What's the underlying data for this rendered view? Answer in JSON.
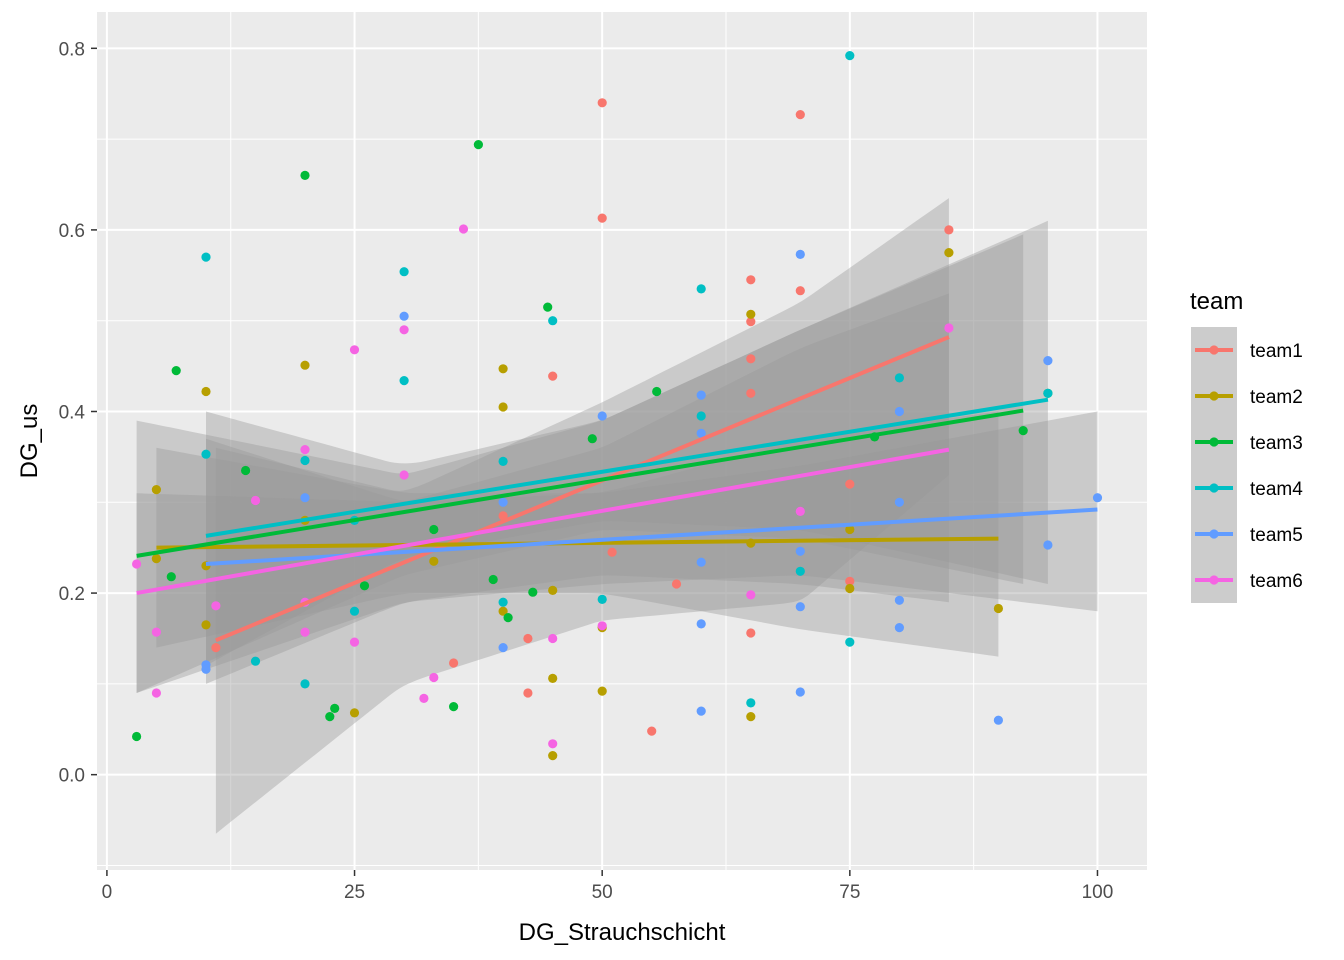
{
  "chart_data": {
    "type": "scatter",
    "title": "",
    "xlabel": "DG_Strauchschicht",
    "ylabel": "DG_us",
    "xlim": [
      -1,
      105
    ],
    "ylim": [
      -0.105,
      0.84
    ],
    "x_ticks": [
      0,
      25,
      50,
      75,
      100
    ],
    "y_ticks": [
      0.0,
      0.2,
      0.4,
      0.6,
      0.8
    ],
    "x_tick_labels": [
      "0",
      "25",
      "50",
      "75",
      "100"
    ],
    "y_tick_labels": [
      "0.0",
      "0.2",
      "0.4",
      "0.6",
      "0.8"
    ],
    "grid": true,
    "legend": {
      "title": "team",
      "position": "right"
    },
    "smoothing": "linear fit with confidence band",
    "series": [
      {
        "name": "team1",
        "color": "#F8766D",
        "points": [
          [
            50,
            0.74
          ],
          [
            50,
            0.613
          ],
          [
            70,
            0.727
          ],
          [
            85,
            0.6
          ],
          [
            65,
            0.545
          ],
          [
            70,
            0.533
          ],
          [
            65,
            0.499
          ],
          [
            65,
            0.458
          ],
          [
            45,
            0.439
          ],
          [
            65,
            0.42
          ],
          [
            75,
            0.32
          ],
          [
            75,
            0.213
          ],
          [
            57.5,
            0.21
          ],
          [
            51,
            0.245
          ],
          [
            42.5,
            0.15
          ],
          [
            35,
            0.123
          ],
          [
            42.5,
            0.09
          ],
          [
            55,
            0.048
          ],
          [
            65,
            0.156
          ],
          [
            11,
            0.14
          ],
          [
            40,
            0.285
          ]
        ],
        "fit": {
          "x": [
            11,
            85
          ],
          "y": [
            0.148,
            0.482
          ]
        },
        "band": {
          "x": [
            11,
            30,
            50,
            70,
            85
          ],
          "lo": [
            -0.065,
            0.1,
            0.17,
            0.19,
            0.33
          ],
          "hi": [
            0.36,
            0.31,
            0.41,
            0.52,
            0.635
          ]
        }
      },
      {
        "name": "team2",
        "color": "#B79F00",
        "points": [
          [
            5,
            0.314
          ],
          [
            5,
            0.238
          ],
          [
            10,
            0.422
          ],
          [
            10,
            0.165
          ],
          [
            10,
            0.23
          ],
          [
            20,
            0.451
          ],
          [
            20,
            0.28
          ],
          [
            25,
            0.068
          ],
          [
            33,
            0.235
          ],
          [
            40,
            0.447
          ],
          [
            40,
            0.405
          ],
          [
            40,
            0.18
          ],
          [
            45,
            0.203
          ],
          [
            45,
            0.106
          ],
          [
            45,
            0.021
          ],
          [
            50,
            0.162
          ],
          [
            50,
            0.092
          ],
          [
            65,
            0.507
          ],
          [
            65,
            0.064
          ],
          [
            65,
            0.255
          ],
          [
            75,
            0.205
          ],
          [
            85,
            0.575
          ],
          [
            90,
            0.183
          ],
          [
            75,
            0.27
          ]
        ],
        "fit": {
          "x": [
            5,
            90
          ],
          "y": [
            0.25,
            0.26
          ]
        },
        "band": {
          "x": [
            5,
            30,
            50,
            70,
            90
          ],
          "lo": [
            0.14,
            0.2,
            0.2,
            0.16,
            0.13
          ],
          "hi": [
            0.36,
            0.31,
            0.31,
            0.37,
            0.4
          ]
        }
      },
      {
        "name": "team3",
        "color": "#00BA38",
        "points": [
          [
            3,
            0.042
          ],
          [
            7,
            0.445
          ],
          [
            20,
            0.66
          ],
          [
            37.5,
            0.694
          ],
          [
            44.5,
            0.515
          ],
          [
            40.5,
            0.173
          ],
          [
            35,
            0.075
          ],
          [
            23,
            0.073
          ],
          [
            22.5,
            0.064
          ],
          [
            39,
            0.215
          ],
          [
            43,
            0.201
          ],
          [
            49,
            0.37
          ],
          [
            55.5,
            0.422
          ],
          [
            77.5,
            0.372
          ],
          [
            92.5,
            0.379
          ],
          [
            95,
            0.42
          ],
          [
            6.5,
            0.218
          ],
          [
            14,
            0.335
          ],
          [
            26,
            0.208
          ],
          [
            33,
            0.27
          ]
        ],
        "fit": {
          "x": [
            3,
            92.5
          ],
          "y": [
            0.241,
            0.401
          ]
        },
        "band": {
          "x": [
            3,
            30,
            50,
            70,
            92.5
          ],
          "lo": [
            0.09,
            0.22,
            0.27,
            0.26,
            0.21
          ],
          "hi": [
            0.39,
            0.33,
            0.39,
            0.49,
            0.595
          ]
        }
      },
      {
        "name": "team4",
        "color": "#00BFC4",
        "points": [
          [
            10,
            0.57
          ],
          [
            10,
            0.353
          ],
          [
            30,
            0.554
          ],
          [
            30,
            0.434
          ],
          [
            20,
            0.346
          ],
          [
            20,
            0.1
          ],
          [
            25,
            0.18
          ],
          [
            40,
            0.345
          ],
          [
            40,
            0.19
          ],
          [
            45,
            0.5
          ],
          [
            50,
            0.193
          ],
          [
            60,
            0.535
          ],
          [
            60,
            0.395
          ],
          [
            65,
            0.079
          ],
          [
            70,
            0.224
          ],
          [
            75,
            0.792
          ],
          [
            75,
            0.146
          ],
          [
            80,
            0.437
          ],
          [
            95,
            0.42
          ],
          [
            15,
            0.125
          ],
          [
            25,
            0.28
          ]
        ],
        "fit": {
          "x": [
            10,
            95
          ],
          "y": [
            0.263,
            0.413
          ]
        },
        "band": {
          "x": [
            10,
            30,
            50,
            70,
            95
          ],
          "lo": [
            0.12,
            0.24,
            0.28,
            0.27,
            0.21
          ],
          "hi": [
            0.4,
            0.34,
            0.39,
            0.49,
            0.61
          ]
        }
      },
      {
        "name": "team5",
        "color": "#619CFF",
        "points": [
          [
            10,
            0.121
          ],
          [
            10,
            0.116
          ],
          [
            30,
            0.505
          ],
          [
            40,
            0.14
          ],
          [
            50,
            0.395
          ],
          [
            60,
            0.418
          ],
          [
            60,
            0.376
          ],
          [
            60,
            0.234
          ],
          [
            60,
            0.166
          ],
          [
            60,
            0.07
          ],
          [
            70,
            0.573
          ],
          [
            70,
            0.246
          ],
          [
            70,
            0.185
          ],
          [
            70,
            0.091
          ],
          [
            80,
            0.4
          ],
          [
            80,
            0.3
          ],
          [
            80,
            0.192
          ],
          [
            80,
            0.162
          ],
          [
            90,
            0.06
          ],
          [
            95,
            0.456
          ],
          [
            95,
            0.253
          ],
          [
            100,
            0.305
          ],
          [
            20,
            0.305
          ],
          [
            40,
            0.3
          ]
        ],
        "fit": {
          "x": [
            10,
            100
          ],
          "y": [
            0.232,
            0.292
          ]
        },
        "band": {
          "x": [
            10,
            30,
            50,
            70,
            100
          ],
          "lo": [
            0.1,
            0.19,
            0.21,
            0.22,
            0.18
          ],
          "hi": [
            0.37,
            0.3,
            0.31,
            0.34,
            0.4
          ]
        }
      },
      {
        "name": "team6",
        "color": "#F564E3",
        "points": [
          [
            3,
            0.232
          ],
          [
            5,
            0.157
          ],
          [
            5,
            0.09
          ],
          [
            20,
            0.358
          ],
          [
            20,
            0.157
          ],
          [
            20,
            0.19
          ],
          [
            25,
            0.468
          ],
          [
            25,
            0.146
          ],
          [
            30,
            0.49
          ],
          [
            30,
            0.33
          ],
          [
            32,
            0.084
          ],
          [
            33,
            0.107
          ],
          [
            36,
            0.601
          ],
          [
            45,
            0.15
          ],
          [
            45,
            0.034
          ],
          [
            50,
            0.164
          ],
          [
            65,
            0.198
          ],
          [
            70,
            0.29
          ],
          [
            85,
            0.492
          ],
          [
            11,
            0.186
          ],
          [
            15,
            0.302
          ]
        ],
        "fit": {
          "x": [
            3,
            85
          ],
          "y": [
            0.2,
            0.358
          ]
        },
        "band": {
          "x": [
            3,
            30,
            50,
            70,
            85
          ],
          "lo": [
            0.09,
            0.19,
            0.22,
            0.21,
            0.19
          ],
          "hi": [
            0.31,
            0.3,
            0.36,
            0.47,
            0.53
          ]
        }
      }
    ]
  }
}
